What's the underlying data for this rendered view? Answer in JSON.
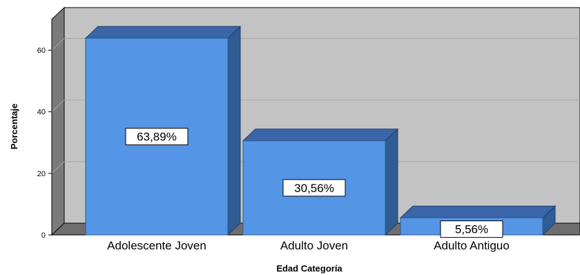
{
  "chart_data": {
    "type": "bar",
    "categories": [
      "Adolescente Joven",
      "Adulto Joven",
      "Adulto Antiguo"
    ],
    "values": [
      63.89,
      30.56,
      5.56
    ],
    "data_labels": [
      "63,89%",
      "30,56%",
      "5,56%"
    ],
    "xlabel": "Edad Categoría",
    "ylabel": "Porcentaje",
    "ylim": [
      0,
      70
    ],
    "yticks": [
      0,
      20,
      40,
      60
    ],
    "ytick_labels": [
      "0",
      "20",
      "40",
      "60"
    ],
    "grid": true,
    "style": "3d"
  },
  "colors": {
    "plot_background": "#c3c3c3",
    "side_wall": "#7a7a7a",
    "floor": "#6e6e6e",
    "gridline": "#a5a5a5",
    "bar_front": "#5595e5",
    "bar_top": "#3a65a8",
    "bar_side": "#2f5c93"
  }
}
